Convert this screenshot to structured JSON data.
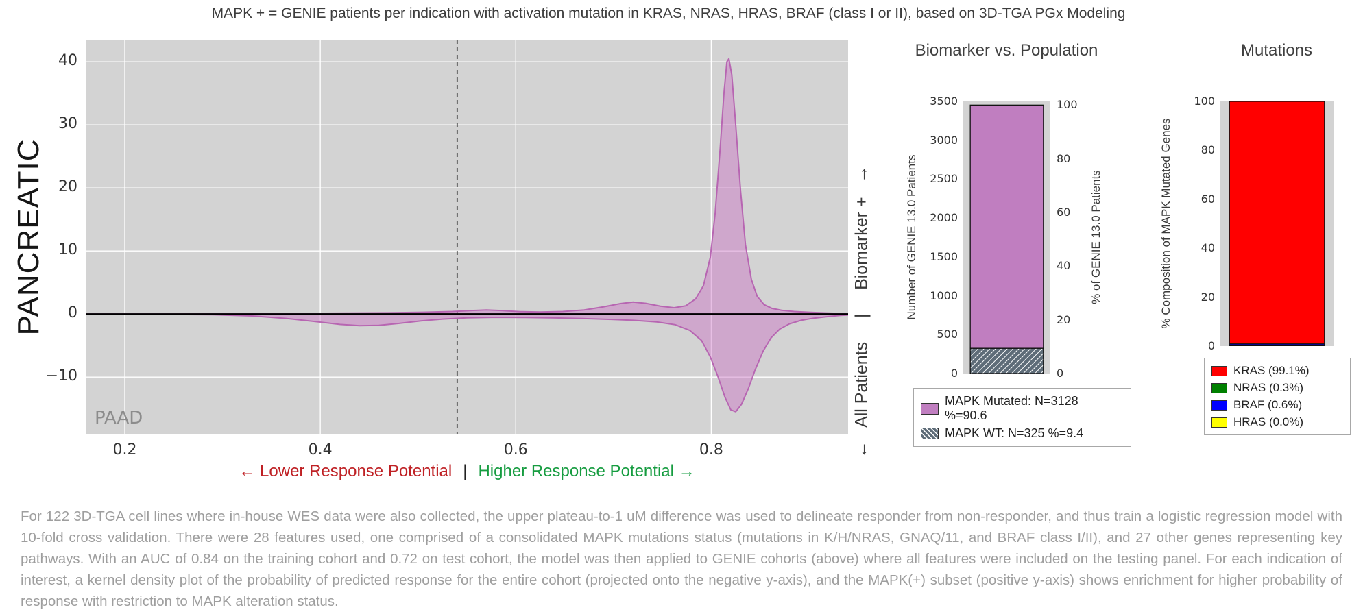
{
  "title": "MAPK + = GENIE patients per indication with activation mutation in KRAS, NRAS, HRAS, BRAF (class I or II), based on 3D-TGA PGx Modeling",
  "density": {
    "indication_label": "PANCREATIC",
    "inner_label": "PAAD",
    "x_annotation": {
      "lower": "← Lower Response Potential",
      "separator": "|",
      "higher": "Higher Response Potential →"
    },
    "right_axis_label": "←   All Patients     |     Biomarker +   →"
  },
  "footnote": "For 122 3D-TGA cell lines where in-house WES data were also collected, the upper plateau-to-1 uM difference was used to delineate responder from non-responder, and thus train a logistic regression model with 10-fold cross validation. There were 28 features used, one comprised of a consolidated MAPK mutations status (mutations in K/H/NRAS, GNAQ/11, and BRAF class I/II), and 27 other genes representing key pathways. With an AUC of 0.84 on the training cohort and 0.72 on test cohort, the model was then applied to GENIE cohorts (above) where all features were included on the testing panel. For each indication of interest, a kernel density plot of the probability of predicted response for the entire cohort (projected onto the negative y-axis), and the MAPK(+) subset (positive y-axis) shows enrichment for higher probability of response with restriction to MAPK alteration status.",
  "chart_data": [
    {
      "id": "density",
      "type": "area",
      "title": "",
      "indication": "PANCREATIC",
      "inner_label": "PAAD",
      "xlim": [
        0.16,
        0.94
      ],
      "ylim": [
        -19,
        43.5
      ],
      "xticks": [
        0.2,
        0.4,
        0.6,
        0.8
      ],
      "yticks": [
        -10,
        0,
        10,
        20,
        30,
        40
      ],
      "threshold_x": 0.54,
      "bg_color": "#d3d3d3",
      "grid_color": "#ffffff",
      "fill_color": "#c972c4",
      "stroke_color": "#b45cae",
      "series": [
        {
          "name": "Biomarker +",
          "points": [
            [
              0.16,
              0.0
            ],
            [
              0.25,
              0.0
            ],
            [
              0.32,
              0.05
            ],
            [
              0.38,
              0.1
            ],
            [
              0.43,
              0.15
            ],
            [
              0.47,
              0.2
            ],
            [
              0.505,
              0.28
            ],
            [
              0.535,
              0.4
            ],
            [
              0.555,
              0.55
            ],
            [
              0.57,
              0.65
            ],
            [
              0.585,
              0.55
            ],
            [
              0.605,
              0.38
            ],
            [
              0.625,
              0.32
            ],
            [
              0.648,
              0.4
            ],
            [
              0.67,
              0.65
            ],
            [
              0.69,
              1.15
            ],
            [
              0.707,
              1.65
            ],
            [
              0.72,
              1.9
            ],
            [
              0.733,
              1.7
            ],
            [
              0.748,
              1.25
            ],
            [
              0.762,
              1.0
            ],
            [
              0.774,
              1.3
            ],
            [
              0.784,
              2.4
            ],
            [
              0.792,
              4.5
            ],
            [
              0.799,
              9.0
            ],
            [
              0.804,
              16.0
            ],
            [
              0.809,
              26.0
            ],
            [
              0.813,
              35.0
            ],
            [
              0.816,
              40.0
            ],
            [
              0.818,
              40.5
            ],
            [
              0.821,
              38.0
            ],
            [
              0.825,
              30.0
            ],
            [
              0.83,
              19.5
            ],
            [
              0.835,
              11.0
            ],
            [
              0.841,
              5.5
            ],
            [
              0.847,
              2.8
            ],
            [
              0.854,
              1.5
            ],
            [
              0.862,
              0.9
            ],
            [
              0.872,
              0.6
            ],
            [
              0.885,
              0.4
            ],
            [
              0.9,
              0.28
            ],
            [
              0.915,
              0.18
            ],
            [
              0.93,
              0.1
            ],
            [
              0.94,
              0.06
            ]
          ]
        },
        {
          "name": "All Patients",
          "points": [
            [
              0.16,
              0.0
            ],
            [
              0.23,
              -0.04
            ],
            [
              0.29,
              -0.12
            ],
            [
              0.33,
              -0.3
            ],
            [
              0.365,
              -0.7
            ],
            [
              0.395,
              -1.2
            ],
            [
              0.42,
              -1.65
            ],
            [
              0.44,
              -1.85
            ],
            [
              0.46,
              -1.8
            ],
            [
              0.48,
              -1.5
            ],
            [
              0.503,
              -1.1
            ],
            [
              0.525,
              -0.8
            ],
            [
              0.55,
              -0.6
            ],
            [
              0.58,
              -0.52
            ],
            [
              0.61,
              -0.55
            ],
            [
              0.64,
              -0.62
            ],
            [
              0.668,
              -0.72
            ],
            [
              0.695,
              -0.85
            ],
            [
              0.72,
              -1.0
            ],
            [
              0.744,
              -1.25
            ],
            [
              0.763,
              -1.7
            ],
            [
              0.778,
              -2.6
            ],
            [
              0.79,
              -4.2
            ],
            [
              0.799,
              -6.8
            ],
            [
              0.807,
              -10.0
            ],
            [
              0.814,
              -13.2
            ],
            [
              0.82,
              -15.2
            ],
            [
              0.825,
              -15.5
            ],
            [
              0.831,
              -14.3
            ],
            [
              0.838,
              -11.8
            ],
            [
              0.845,
              -8.8
            ],
            [
              0.853,
              -5.9
            ],
            [
              0.861,
              -3.8
            ],
            [
              0.87,
              -2.4
            ],
            [
              0.88,
              -1.55
            ],
            [
              0.892,
              -1.0
            ],
            [
              0.905,
              -0.65
            ],
            [
              0.92,
              -0.4
            ],
            [
              0.932,
              -0.22
            ],
            [
              0.94,
              -0.15
            ]
          ]
        }
      ]
    },
    {
      "id": "population",
      "type": "bar",
      "title": "Biomarker vs. Population",
      "ylabel_left": "Number of GENIE 13.0 Patients",
      "ylabel_right": "% of GENIE 13.0 Patients",
      "ylim": [
        0,
        3500
      ],
      "yticks": [
        0,
        500,
        1000,
        1500,
        2000,
        2500,
        3000,
        3500
      ],
      "yticks_right": [
        0,
        20,
        40,
        60,
        80,
        100
      ],
      "right_axis_total": 3453,
      "bg_color": "#d3d3d3",
      "segments": [
        {
          "label": "MAPK WT: N=325 %=9.4",
          "value": 325,
          "color": "#5e6c78",
          "hatch": true
        },
        {
          "label": "MAPK Mutated: N=3128 %=90.6",
          "value": 3128,
          "color": "#c07ec0",
          "hatch": false
        }
      ],
      "legend": [
        {
          "label": "MAPK Mutated: N=3128 %=90.6",
          "color": "#c07ec0",
          "hatch": false
        },
        {
          "label": "MAPK WT: N=325 %=9.4",
          "color": "#5e6c78",
          "hatch": true
        }
      ]
    },
    {
      "id": "mutations",
      "type": "bar",
      "title": "Mutations",
      "ylabel_left": "% Composition of MAPK Mutated Genes",
      "ylim": [
        0,
        100
      ],
      "yticks": [
        0,
        20,
        40,
        60,
        80,
        100
      ],
      "bg_color": "#d3d3d3",
      "segments": [
        {
          "label": "NRAS",
          "value": 0.3,
          "color": "#008000",
          "hatch": false
        },
        {
          "label": "BRAF",
          "value": 0.6,
          "color": "#0000ff",
          "hatch": false
        },
        {
          "label": "KRAS",
          "value": 99.1,
          "color": "#ff0000",
          "hatch": false
        },
        {
          "label": "HRAS",
          "value": 0.0,
          "color": "#ffff00",
          "hatch": false
        }
      ],
      "legend": [
        {
          "label": "KRAS (99.1%)",
          "color": "#ff0000",
          "hatch": false
        },
        {
          "label": "NRAS (0.3%)",
          "color": "#008000",
          "hatch": false
        },
        {
          "label": "BRAF (0.6%)",
          "color": "#0000ff",
          "hatch": false
        },
        {
          "label": "HRAS (0.0%)",
          "color": "#ffff00",
          "hatch": false
        }
      ]
    }
  ]
}
